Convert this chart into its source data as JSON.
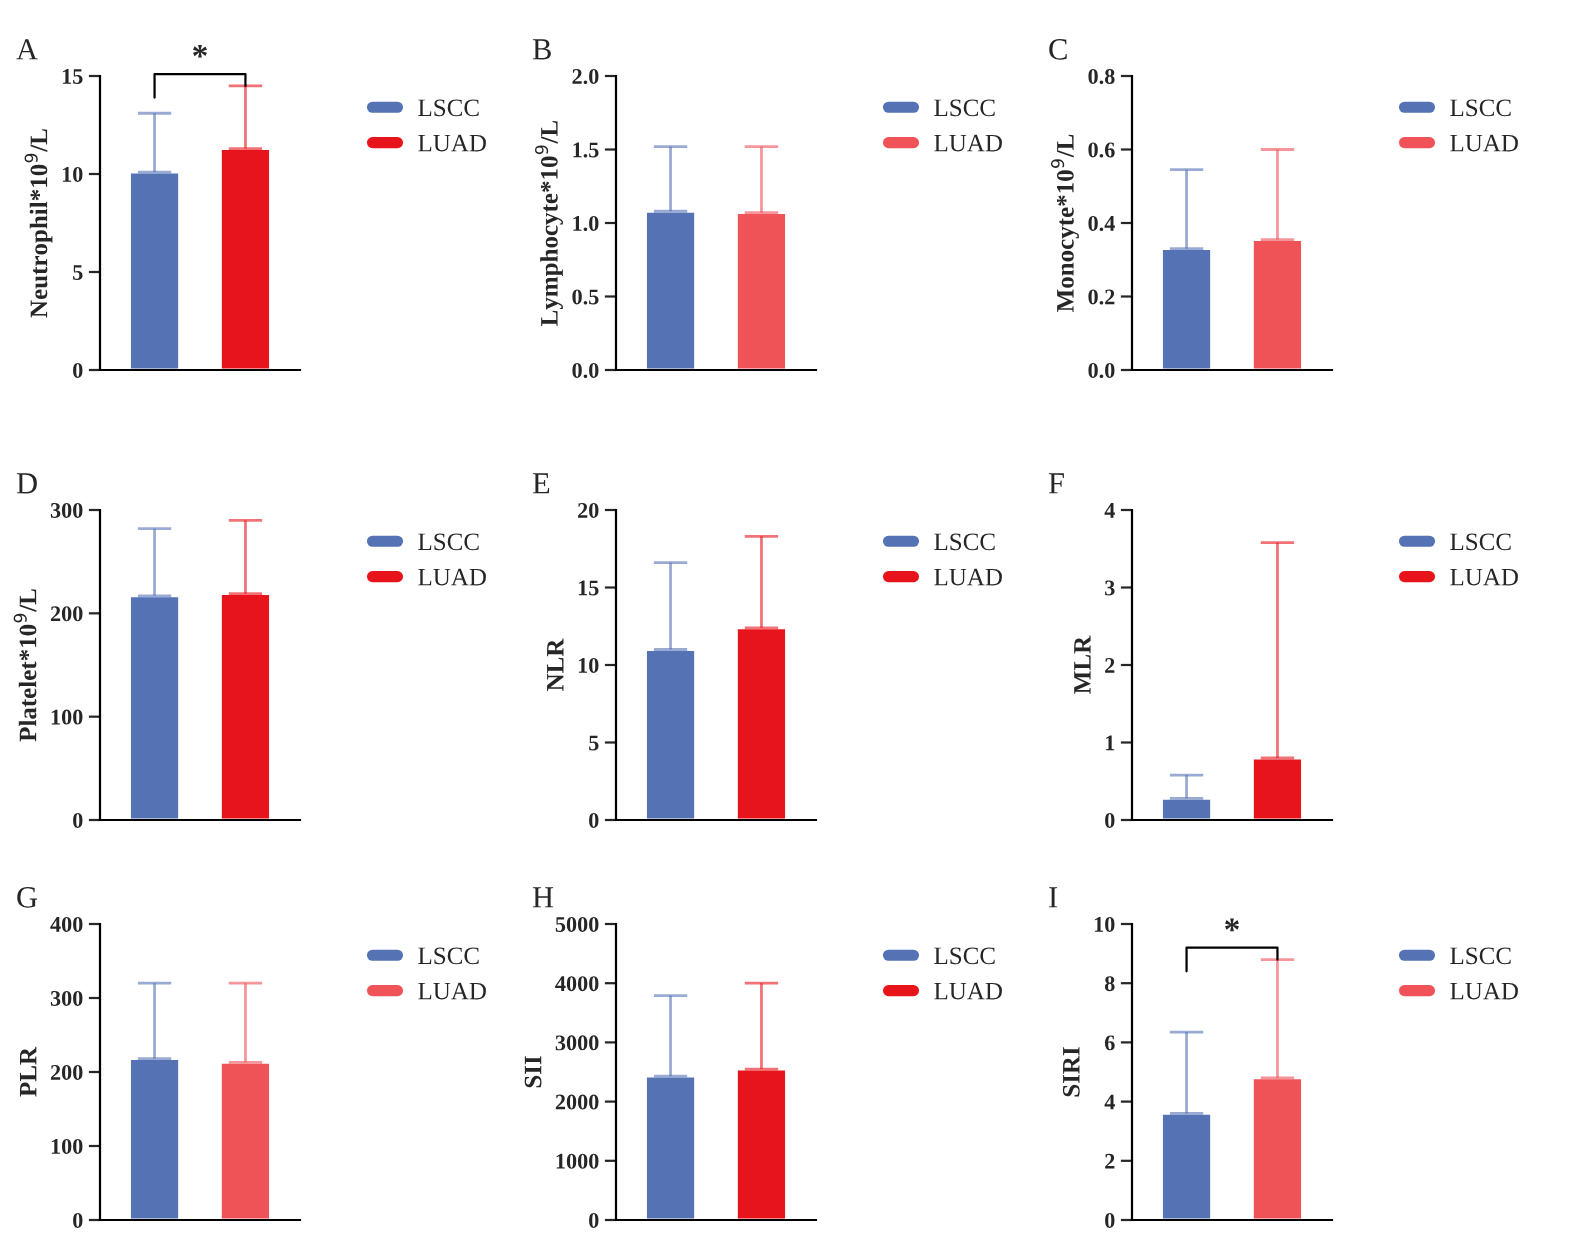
{
  "chart_data": [
    {
      "type": "bar",
      "title": "A",
      "ylabel": "Neutrophil*10$^{9}$/L",
      "categories": [
        null,
        null
      ],
      "ylim": [
        0,
        15
      ],
      "yticks": [
        0,
        5,
        10,
        15
      ],
      "tick_labels": "y",
      "legend": "right",
      "grid": false,
      "annotations": [
        "*"
      ],
      "series": [
        {
          "name": "LSCC",
          "color": "#5572b5",
          "values": [
            10.1,
            null
          ],
          "errors": [
            [
              10.1,
              13.1
            ],
            null
          ]
        },
        {
          "name": "LUAD",
          "color": "#e8141c",
          "values": [
            null,
            11.3
          ],
          "errors": [
            null,
            [
              11.3,
              14.5
            ]
          ]
        }
      ]
    },
    {
      "type": "bar",
      "title": "B",
      "ylabel": "Lymphocyte*10$^{9}$/L",
      "categories": [
        null,
        null
      ],
      "ylim": [
        0,
        2
      ],
      "yticks": [
        {
          "value": 0,
          "label": "0.0"
        },
        0.5,
        {
          "value": 1,
          "label": "1.0"
        },
        1.5,
        {
          "value": 2,
          "label": "2.0"
        }
      ],
      "tick_labels": "y",
      "legend": "right",
      "grid": false,
      "series": [
        {
          "name": "LSCC",
          "color": "#5572b5",
          "values": [
            1.08,
            null
          ],
          "errors": [
            [
              1.08,
              1.52
            ],
            null
          ]
        },
        {
          "name": "LUAD",
          "color": "#ef5257",
          "values": [
            null,
            1.07
          ],
          "errors": [
            null,
            [
              1.07,
              1.52
            ]
          ]
        }
      ]
    },
    {
      "type": "bar",
      "title": "C",
      "ylabel": "Monocyte*10$^{9}$/L",
      "categories": [
        null,
        null
      ],
      "ylim": [
        0,
        0.8
      ],
      "yticks": [
        {
          "value": 0,
          "label": "0.0"
        },
        0.2,
        0.4,
        0.6,
        0.8
      ],
      "tick_labels": "y",
      "legend": "right",
      "grid": false,
      "series": [
        {
          "name": "LSCC",
          "color": "#5572b5",
          "values": [
            0.33,
            null
          ],
          "errors": [
            [
              0.33,
              0.545
            ],
            null
          ]
        },
        {
          "name": "LUAD",
          "color": "#ef5257",
          "values": [
            null,
            0.355
          ],
          "errors": [
            null,
            [
              0.355,
              0.6
            ]
          ]
        }
      ]
    },
    {
      "type": "bar",
      "title": "D",
      "ylabel": "Platelet*10$^{9}$/L",
      "categories": [
        null,
        null
      ],
      "ylim": [
        0,
        300
      ],
      "yticks": [
        0,
        100,
        200,
        300
      ],
      "tick_labels": "y",
      "legend": "right",
      "grid": false,
      "series": [
        {
          "name": "LSCC",
          "color": "#5572b5",
          "values": [
            217,
            null
          ],
          "errors": [
            [
              217,
              282
            ],
            null
          ]
        },
        {
          "name": "LUAD",
          "color": "#e8141c",
          "values": [
            null,
            219
          ],
          "errors": [
            null,
            [
              219,
              290
            ]
          ]
        }
      ]
    },
    {
      "type": "bar",
      "title": "E",
      "ylabel": "NLR",
      "categories": [
        null,
        null
      ],
      "ylim": [
        0,
        20
      ],
      "yticks": [
        0,
        5,
        10,
        15,
        20
      ],
      "tick_labels": "y",
      "legend": "right",
      "grid": false,
      "series": [
        {
          "name": "LSCC",
          "color": "#5572b5",
          "values": [
            11.0,
            null
          ],
          "errors": [
            [
              11.0,
              16.6
            ],
            null
          ]
        },
        {
          "name": "LUAD",
          "color": "#e8141c",
          "values": [
            null,
            12.4
          ],
          "errors": [
            null,
            [
              12.4,
              18.3
            ]
          ]
        }
      ]
    },
    {
      "type": "bar",
      "title": "F",
      "ylabel": "MLR",
      "categories": [
        null,
        null
      ],
      "ylim": [
        0,
        4
      ],
      "yticks": [
        0,
        1,
        2,
        3,
        4
      ],
      "tick_labels": "y",
      "legend": "right",
      "grid": false,
      "series": [
        {
          "name": "LSCC",
          "color": "#5572b5",
          "values": [
            0.28,
            null
          ],
          "errors": [
            [
              0.28,
              0.58
            ],
            null
          ]
        },
        {
          "name": "LUAD",
          "color": "#e8141c",
          "values": [
            null,
            0.8
          ],
          "errors": [
            null,
            [
              0.8,
              3.58
            ]
          ]
        }
      ]
    },
    {
      "type": "bar",
      "title": "G",
      "ylabel": "PLR",
      "categories": [
        null,
        null
      ],
      "ylim": [
        0,
        400
      ],
      "yticks": [
        0,
        100,
        200,
        300,
        400
      ],
      "tick_labels": "y",
      "legend": "right",
      "grid": false,
      "series": [
        {
          "name": "LSCC",
          "color": "#5572b5",
          "values": [
            218,
            null
          ],
          "errors": [
            [
              218,
              320
            ],
            null
          ]
        },
        {
          "name": "LUAD",
          "color": "#ef5257",
          "values": [
            null,
            213
          ],
          "errors": [
            null,
            [
              213,
              320
            ]
          ]
        }
      ]
    },
    {
      "type": "bar",
      "title": "H",
      "ylabel": "SII",
      "categories": [
        null,
        null
      ],
      "ylim": [
        0,
        5000
      ],
      "yticks": [
        0,
        1000,
        2000,
        3000,
        4000,
        5000
      ],
      "tick_labels": "y",
      "legend": "right",
      "grid": false,
      "series": [
        {
          "name": "LSCC",
          "color": "#5572b5",
          "values": [
            2430,
            null
          ],
          "errors": [
            [
              2430,
              3790
            ],
            null
          ]
        },
        {
          "name": "LUAD",
          "color": "#e8141c",
          "values": [
            null,
            2550
          ],
          "errors": [
            null,
            [
              2550,
              4000
            ]
          ]
        }
      ]
    },
    {
      "type": "bar",
      "title": "I",
      "ylabel": "SIRI",
      "categories": [
        null,
        null
      ],
      "ylim": [
        0,
        10
      ],
      "yticks": [
        0,
        2,
        4,
        6,
        8,
        10
      ],
      "tick_labels": "y",
      "legend": "right",
      "grid": false,
      "annotations": [
        "*"
      ],
      "series": [
        {
          "name": "LSCC",
          "color": "#5572b5",
          "values": [
            3.6,
            null
          ],
          "errors": [
            [
              3.6,
              6.35
            ],
            null
          ]
        },
        {
          "name": "LUAD",
          "color": "#ef5257",
          "values": [
            null,
            4.8
          ],
          "errors": [
            null,
            [
              4.8,
              8.8
            ]
          ]
        }
      ]
    }
  ]
}
